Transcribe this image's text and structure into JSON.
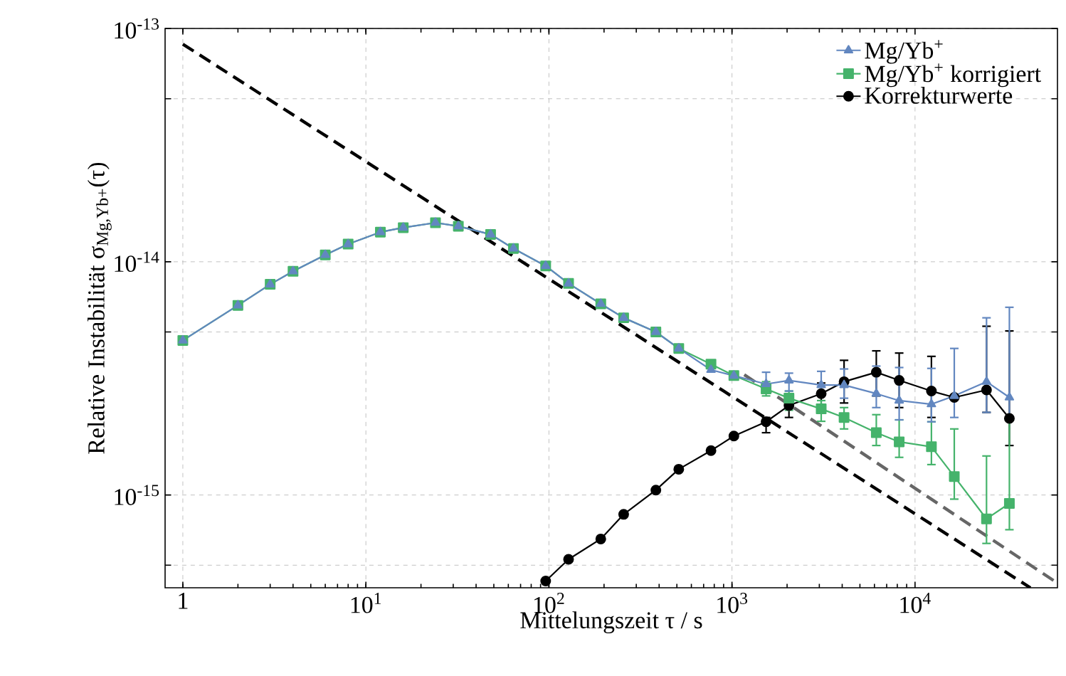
{
  "chart_data": {
    "type": "line",
    "xlabel": "Mittelungszeit τ / s",
    "ylabel": "Relative Instabilität σ$_{Mg,Yb+}$(τ)",
    "log": "xy",
    "xlim": [
      0.8,
      60000
    ],
    "ylim": [
      4e-16,
      1e-13
    ],
    "xticks": [
      {
        "value": 1,
        "label": "1"
      },
      {
        "value": 10,
        "label": "10$^{1}$"
      },
      {
        "value": 100,
        "label": "10$^{2}$"
      },
      {
        "value": 1000,
        "label": "10$^{3}$"
      },
      {
        "value": 10000,
        "label": "10$^{4}$"
      }
    ],
    "yticks": [
      {
        "value": 5e-16,
        "label": null
      },
      {
        "value": 1e-15,
        "label": "10$^{-15}$"
      },
      {
        "value": 5e-15,
        "label": null
      },
      {
        "value": 1e-14,
        "label": "10$^{-14}$"
      },
      {
        "value": 5e-14,
        "label": null
      },
      {
        "value": 1e-13,
        "label": "10$^{-13}$"
      }
    ],
    "grid": true,
    "legend": "top right",
    "series": [
      {
        "name": "Mg/Yb$^{+}$",
        "color": "#6287c0",
        "marker": "triangle",
        "x": [
          1,
          2,
          3,
          4,
          6,
          8,
          12,
          16,
          24,
          32,
          48,
          64,
          96,
          128,
          192,
          256,
          384,
          512,
          768,
          1024,
          1536,
          2048,
          3072,
          4096,
          6144,
          8192,
          12288,
          16384,
          24576,
          32768
        ],
        "values": [
          4.6e-15,
          6.5e-15,
          8e-15,
          9.1e-15,
          1.07e-14,
          1.19e-14,
          1.34e-14,
          1.4e-14,
          1.47e-14,
          1.42e-14,
          1.31e-14,
          1.14e-14,
          9.6e-15,
          8.07e-15,
          6.6e-15,
          5.75e-15,
          5e-15,
          4.25e-15,
          3.44e-15,
          3.25e-15,
          2.99e-15,
          3.1e-15,
          2.96e-15,
          2.96e-15,
          2.72e-15,
          2.54e-15,
          2.45e-15,
          2.66e-15,
          3.06e-15,
          2.62e-15
        ],
        "errors": [
          null,
          null,
          null,
          null,
          null,
          null,
          null,
          null,
          null,
          null,
          null,
          null,
          null,
          null,
          null,
          null,
          null,
          null,
          null,
          null,
          [
            2.79e-15,
            3.36e-15
          ],
          [
            2.79e-15,
            3.33e-15
          ],
          [
            2.66e-15,
            3.39e-15
          ],
          [
            2.6e-15,
            3.47e-15
          ],
          [
            2.37e-15,
            3.57e-15
          ],
          [
            2.1e-15,
            3.52e-15
          ],
          [
            2.06e-15,
            3.49e-15
          ],
          [
            2.15e-15,
            4.25e-15
          ],
          [
            2.26e-15,
            5.75e-15
          ],
          [
            2.15e-15,
            6.38e-15
          ]
        ]
      },
      {
        "name": "Mg/Yb$^{+}$ korrigiert",
        "color": "#45b36b",
        "marker": "square",
        "x": [
          1,
          2,
          3,
          4,
          6,
          8,
          12,
          16,
          24,
          32,
          48,
          64,
          96,
          128,
          192,
          256,
          384,
          512,
          768,
          1024,
          1536,
          2048,
          3072,
          4096,
          6144,
          8192,
          12288,
          16384,
          24576,
          32768
        ],
        "values": [
          4.6e-15,
          6.5e-15,
          8e-15,
          9.1e-15,
          1.07e-14,
          1.19e-14,
          1.34e-14,
          1.4e-14,
          1.47e-14,
          1.42e-14,
          1.31e-14,
          1.14e-14,
          9.6e-15,
          8.07e-15,
          6.6e-15,
          5.75e-15,
          5e-15,
          4.25e-15,
          3.64e-15,
          3.25e-15,
          2.85e-15,
          2.6e-15,
          2.34e-15,
          2.15e-15,
          1.85e-15,
          1.69e-15,
          1.61e-15,
          1.2e-15,
          7.9e-16,
          9.2e-16
        ],
        "errors": [
          null,
          null,
          null,
          null,
          null,
          null,
          null,
          null,
          null,
          null,
          null,
          null,
          null,
          null,
          null,
          null,
          null,
          null,
          null,
          null,
          [
            2.66e-15,
            3.06e-15
          ],
          [
            2.31e-15,
            2.79e-15
          ],
          [
            2.07e-15,
            2.54e-15
          ],
          [
            1.92e-15,
            2.37e-15
          ],
          [
            1.63e-15,
            2.21e-15
          ],
          [
            1.45e-15,
            2.1e-15
          ],
          [
            1.35e-15,
            2.06e-15
          ],
          [
            9.6e-16,
            1.92e-15
          ],
          [
            6.2e-16,
            1.47e-15
          ],
          [
            7.1e-16,
            2.15e-15
          ]
        ]
      },
      {
        "name": "Korrekturwerte",
        "color": "#000000",
        "marker": "circle",
        "x": [
          96,
          128,
          192,
          256,
          384,
          512,
          768,
          1024,
          1536,
          2048,
          3072,
          4096,
          6144,
          8192,
          12288,
          16384,
          24576,
          32768
        ],
        "values": [
          4.28e-16,
          5.3e-16,
          6.48e-16,
          8.26e-16,
          1.05e-15,
          1.29e-15,
          1.55e-15,
          1.79e-15,
          2.06e-15,
          2.42e-15,
          2.72e-15,
          3.06e-15,
          3.36e-15,
          3.1e-15,
          2.79e-15,
          2.62e-15,
          2.82e-15,
          2.13e-15
        ],
        "errors": [
          null,
          null,
          null,
          null,
          null,
          null,
          null,
          null,
          [
            1.85e-15,
            2.15e-15
          ],
          [
            2.15e-15,
            2.42e-15
          ],
          [
            2.39e-15,
            3.02e-15
          ],
          [
            2.48e-15,
            3.78e-15
          ],
          [
            2.66e-15,
            4.15e-15
          ],
          [
            2.37e-15,
            4.06e-15
          ],
          [
            2.15e-15,
            3.93e-15
          ],
          null,
          [
            2.26e-15,
            5.29e-15
          ],
          [
            1.63e-15,
            5.05e-15
          ]
        ]
      },
      {
        "type": "line",
        "color": "#000000",
        "marker": "none",
        "line_style": "dashed",
        "x": [
          1,
          42700
        ],
        "values": [
          8.57e-14,
          4e-16
        ]
      },
      {
        "type": "line",
        "color": "#666666",
        "marker": "none",
        "line_style": "dashed",
        "x": [
          1167,
          60000
        ],
        "values": [
          3.28e-15,
          4.19e-16
        ]
      }
    ]
  }
}
